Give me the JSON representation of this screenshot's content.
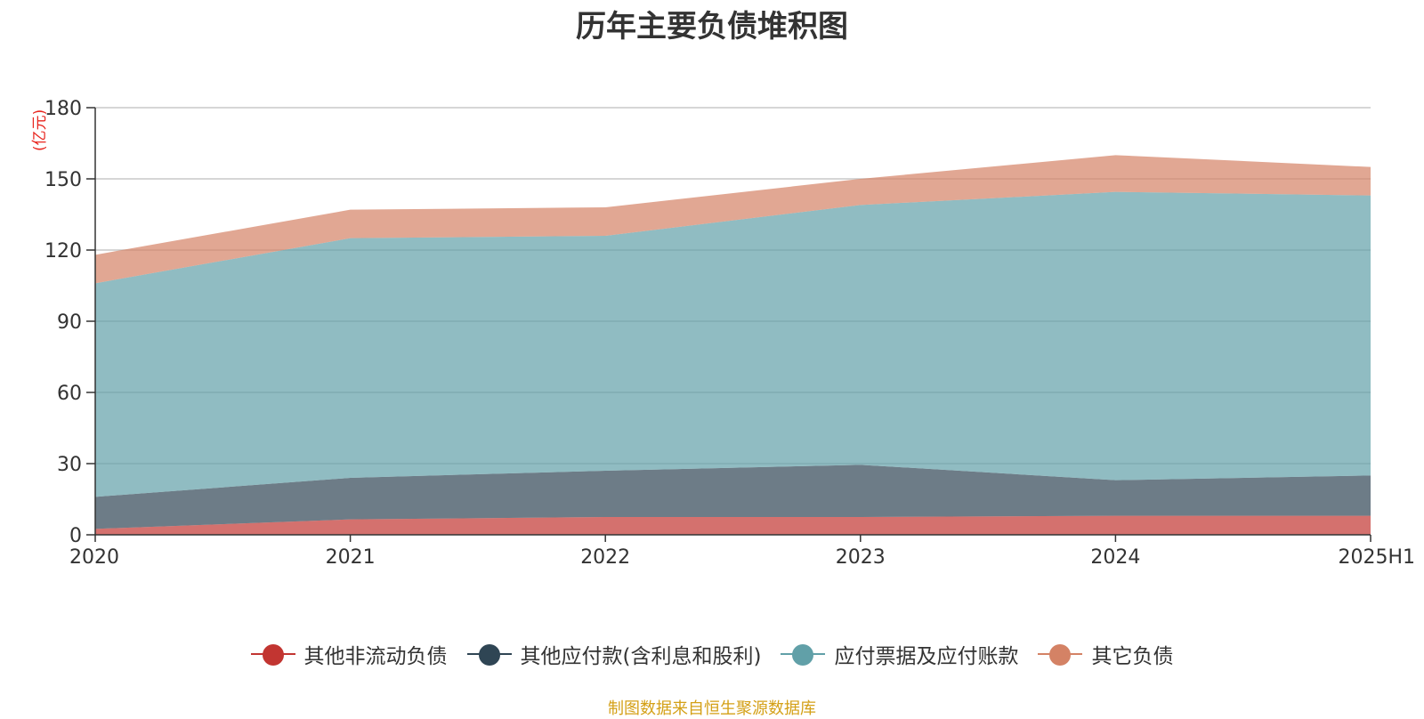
{
  "chart_data": {
    "type": "area",
    "stacked": true,
    "title": "历年主要负债堆积图",
    "ylabel": "(亿元)",
    "x": [
      "2020",
      "2021",
      "2022",
      "2023",
      "2024",
      "2025H1"
    ],
    "ylim": [
      0,
      180
    ],
    "yticks": [
      0,
      30,
      60,
      90,
      120,
      150,
      180
    ],
    "grid": true,
    "legend_position": "bottom",
    "series": [
      {
        "name": "其他非流动负债",
        "color": "#c23531",
        "values": [
          2.5,
          6.5,
          7.5,
          7.5,
          8,
          8
        ]
      },
      {
        "name": "其他应付款(含利息和股利)",
        "color": "#2f4554",
        "values": [
          13.5,
          17.5,
          19.5,
          22,
          15,
          17
        ]
      },
      {
        "name": "应付票据及应付账款",
        "color": "#61a0a8",
        "values": [
          90,
          101,
          99,
          109.5,
          121.5,
          118
        ]
      },
      {
        "name": "其它负债",
        "color": "#d48265",
        "values": [
          12,
          12,
          12,
          11,
          15.5,
          12
        ]
      }
    ]
  },
  "footer": {
    "source": "制图数据来自恒生聚源数据库"
  }
}
